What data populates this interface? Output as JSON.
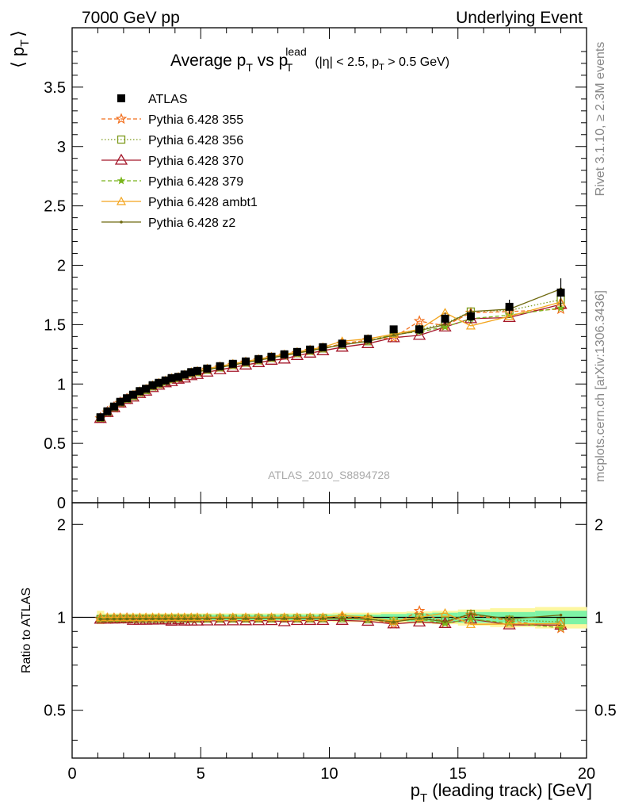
{
  "header": {
    "left": "7000 GeV pp",
    "right": "Underlying Event"
  },
  "side_text": {
    "rivet": "Rivet 3.1.10, ≥ 2.3M events",
    "mcplots": "mcplots.cern.ch [arXiv:1306.3436]"
  },
  "watermark": "ATLAS_2010_S8894728",
  "title": {
    "main": "Average p",
    "main_sub": "T",
    "vs": " vs p",
    "vs_sup": "lead",
    "vs_sub": "T",
    "cuts_1": "(|η| < 2.5, p",
    "cuts_sub": "T",
    "cuts_2": " > 0.5 GeV)"
  },
  "colors": {
    "ATLAS": "#000000",
    "p355": "#f26f1d",
    "p356": "#7d9a1c",
    "p370": "#a4172a",
    "p379": "#7ab51d",
    "ambt1": "#f3a51e",
    "z2": "#6f6a10",
    "band_green": "#7ef3a5",
    "band_yellow": "#fdf7a0"
  },
  "chart_data": [
    {
      "type": "line",
      "title": "Average pT vs pT lead (|η| < 2.5, pT > 0.5 GeV)",
      "ylabel": "⟨ p_T ⟩",
      "ylabel_main": "⟨ p",
      "ylabel_sub": "T",
      "ylabel_end": "⟩",
      "xlim": [
        0,
        20
      ],
      "ylim": [
        0,
        4.0
      ],
      "yticks": [
        "0",
        "0.5",
        "1",
        "1.5",
        "2",
        "2.5",
        "3",
        "3.5"
      ],
      "yticks_values": [
        0,
        0.5,
        1,
        1.5,
        2,
        2.5,
        3,
        3.5
      ],
      "legend_position": "top-left",
      "x": [
        1.1,
        1.37,
        1.63,
        1.87,
        2.13,
        2.37,
        2.63,
        2.87,
        3.13,
        3.37,
        3.63,
        3.87,
        4.13,
        4.37,
        4.63,
        4.87,
        5.25,
        5.75,
        6.25,
        6.75,
        7.25,
        7.75,
        8.25,
        8.75,
        9.25,
        9.75,
        10.5,
        11.5,
        12.5,
        13.5,
        14.5,
        15.5,
        17.0,
        19.0
      ],
      "series": [
        {
          "name": "ATLAS",
          "key": "ATLAS",
          "marker": "square",
          "values": [
            0.72,
            0.77,
            0.81,
            0.85,
            0.88,
            0.91,
            0.94,
            0.96,
            0.99,
            1.01,
            1.03,
            1.05,
            1.06,
            1.08,
            1.1,
            1.11,
            1.13,
            1.15,
            1.17,
            1.19,
            1.21,
            1.23,
            1.25,
            1.27,
            1.29,
            1.31,
            1.34,
            1.38,
            1.46,
            1.46,
            1.55,
            1.57,
            1.65,
            1.77
          ],
          "errors": [
            0.02,
            0.02,
            0.02,
            0.02,
            0.02,
            0.02,
            0.02,
            0.02,
            0.02,
            0.02,
            0.02,
            0.02,
            0.02,
            0.02,
            0.02,
            0.02,
            0.02,
            0.02,
            0.02,
            0.02,
            0.02,
            0.02,
            0.02,
            0.02,
            0.02,
            0.02,
            0.02,
            0.03,
            0.03,
            0.04,
            0.05,
            0.06,
            0.06,
            0.12
          ]
        },
        {
          "name": "Pythia 6.428 355",
          "key": "p355",
          "marker": "star",
          "dash": "5,3",
          "values": [
            0.71,
            0.76,
            0.8,
            0.84,
            0.87,
            0.9,
            0.93,
            0.95,
            0.98,
            1.0,
            1.02,
            1.04,
            1.05,
            1.07,
            1.09,
            1.1,
            1.12,
            1.14,
            1.16,
            1.18,
            1.2,
            1.22,
            1.24,
            1.26,
            1.28,
            1.3,
            1.34,
            1.37,
            1.39,
            1.53,
            1.49,
            1.6,
            1.61,
            1.63
          ]
        },
        {
          "name": "Pythia 6.428 356",
          "key": "p356",
          "marker": "open-square",
          "dash": "1.5,2.5",
          "values": [
            0.71,
            0.76,
            0.8,
            0.84,
            0.87,
            0.9,
            0.93,
            0.95,
            0.98,
            1.0,
            1.02,
            1.04,
            1.05,
            1.07,
            1.09,
            1.1,
            1.12,
            1.14,
            1.16,
            1.18,
            1.2,
            1.22,
            1.24,
            1.26,
            1.28,
            1.3,
            1.33,
            1.36,
            1.42,
            1.46,
            1.51,
            1.61,
            1.62,
            1.71
          ]
        },
        {
          "name": "Pythia 6.428 370",
          "key": "p370",
          "marker": "open-triangle",
          "dash": "",
          "values": [
            0.71,
            0.76,
            0.8,
            0.84,
            0.87,
            0.89,
            0.92,
            0.94,
            0.97,
            0.99,
            1.01,
            1.02,
            1.04,
            1.05,
            1.07,
            1.08,
            1.1,
            1.12,
            1.14,
            1.16,
            1.18,
            1.2,
            1.21,
            1.24,
            1.26,
            1.28,
            1.31,
            1.34,
            1.39,
            1.41,
            1.48,
            1.55,
            1.56,
            1.67
          ]
        },
        {
          "name": "Pythia 6.428 379",
          "key": "p379",
          "marker": "star-small",
          "dash": "5,3",
          "values": [
            0.71,
            0.76,
            0.8,
            0.84,
            0.87,
            0.9,
            0.93,
            0.95,
            0.98,
            1.0,
            1.02,
            1.04,
            1.05,
            1.07,
            1.09,
            1.1,
            1.12,
            1.14,
            1.16,
            1.18,
            1.2,
            1.22,
            1.24,
            1.26,
            1.28,
            1.3,
            1.33,
            1.36,
            1.42,
            1.44,
            1.48,
            1.55,
            1.58,
            1.64
          ]
        },
        {
          "name": "Pythia 6.428 ambt1",
          "key": "ambt1",
          "marker": "open-triangle-small",
          "dash": "",
          "values": [
            0.72,
            0.77,
            0.81,
            0.85,
            0.88,
            0.91,
            0.94,
            0.96,
            0.99,
            1.01,
            1.03,
            1.05,
            1.06,
            1.08,
            1.1,
            1.11,
            1.13,
            1.15,
            1.17,
            1.19,
            1.21,
            1.23,
            1.25,
            1.27,
            1.29,
            1.31,
            1.36,
            1.38,
            1.42,
            1.46,
            1.6,
            1.49,
            1.57,
            1.69
          ]
        },
        {
          "name": "Pythia 6.428 z2",
          "key": "z2",
          "marker": "dot",
          "dash": "",
          "values": [
            0.71,
            0.76,
            0.8,
            0.84,
            0.87,
            0.9,
            0.93,
            0.95,
            0.98,
            1.0,
            1.02,
            1.04,
            1.05,
            1.07,
            1.09,
            1.1,
            1.12,
            1.14,
            1.16,
            1.18,
            1.2,
            1.22,
            1.24,
            1.26,
            1.28,
            1.3,
            1.33,
            1.36,
            1.41,
            1.45,
            1.5,
            1.61,
            1.63,
            1.8
          ]
        }
      ]
    },
    {
      "type": "line",
      "ylabel": "Ratio to ATLAS",
      "xlabel": "p_T (leading track) [GeV]",
      "xlabel_main": "p",
      "xlabel_sub": "T",
      "xlabel_rest": " (leading track) [GeV]",
      "xlim": [
        0,
        20
      ],
      "ylim": [
        0.35,
        2.35
      ],
      "log_y": true,
      "xticks": [
        "0",
        "5",
        "10",
        "15",
        "20"
      ],
      "xticks_values": [
        0,
        5,
        10,
        15,
        20
      ],
      "yticks": [
        "0.5",
        "1",
        "2"
      ],
      "yticks_values": [
        0.5,
        1,
        2
      ],
      "band_green_half": [
        0.02,
        0.02,
        0.02,
        0.02,
        0.02,
        0.02,
        0.02,
        0.02,
        0.02,
        0.02,
        0.02,
        0.02,
        0.02,
        0.02,
        0.02,
        0.02,
        0.02,
        0.02,
        0.02,
        0.02,
        0.02,
        0.02,
        0.02,
        0.02,
        0.02,
        0.02,
        0.02,
        0.02,
        0.025,
        0.03,
        0.035,
        0.04,
        0.04,
        0.05
      ],
      "band_yellow_half": [
        0.05,
        0.03,
        0.03,
        0.03,
        0.03,
        0.03,
        0.03,
        0.03,
        0.03,
        0.03,
        0.03,
        0.03,
        0.03,
        0.03,
        0.03,
        0.03,
        0.03,
        0.03,
        0.03,
        0.03,
        0.03,
        0.03,
        0.03,
        0.03,
        0.03,
        0.03,
        0.035,
        0.035,
        0.04,
        0.045,
        0.05,
        0.06,
        0.07,
        0.08
      ]
    }
  ]
}
